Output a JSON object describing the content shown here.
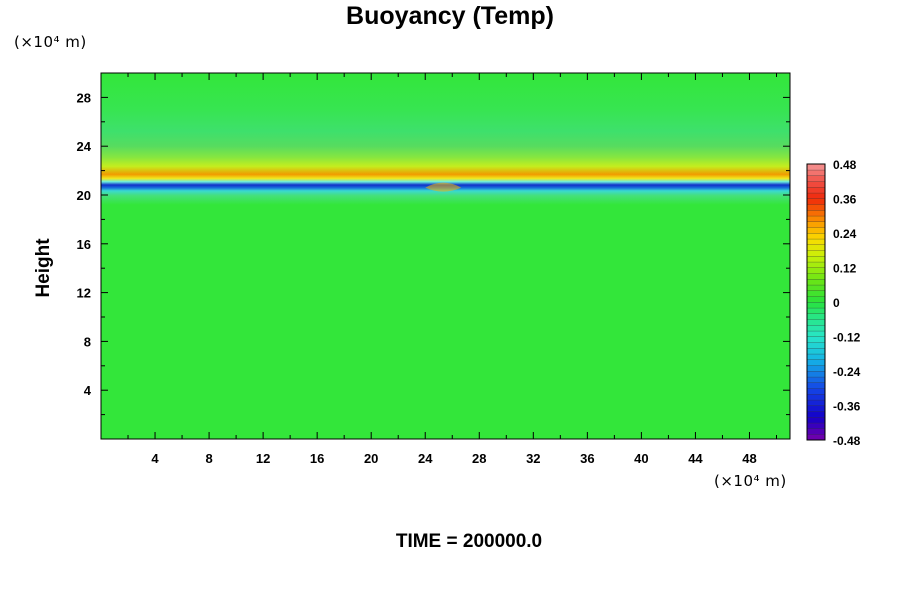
{
  "chart_data": {
    "type": "heatmap",
    "title": "Buoyancy (Temp)",
    "ylabel": "Height",
    "xlabel": "",
    "x_unit": "(×10⁴ m)",
    "y_unit": "(×10⁴ m)",
    "x_range": [
      0,
      51
    ],
    "y_range": [
      0,
      30
    ],
    "x_ticks": [
      "4",
      "8",
      "12",
      "16",
      "20",
      "24",
      "28",
      "32",
      "36",
      "40",
      "44",
      "48"
    ],
    "y_ticks": [
      "4",
      "8",
      "12",
      "16",
      "20",
      "24",
      "28"
    ],
    "colorbar": {
      "min": -0.48,
      "max": 0.48,
      "labels": [
        "0.48",
        "0.36",
        "0.24",
        "0.12",
        "0",
        "-0.12",
        "-0.24",
        "-0.36",
        "-0.48"
      ]
    },
    "features": [
      {
        "name": "cold band",
        "height": 20.2,
        "value": -0.36
      },
      {
        "name": "warm band",
        "height": 21.0,
        "value": 0.3
      },
      {
        "name": "background",
        "value": 0.0
      }
    ],
    "footer": "TIME = 200000.0"
  }
}
